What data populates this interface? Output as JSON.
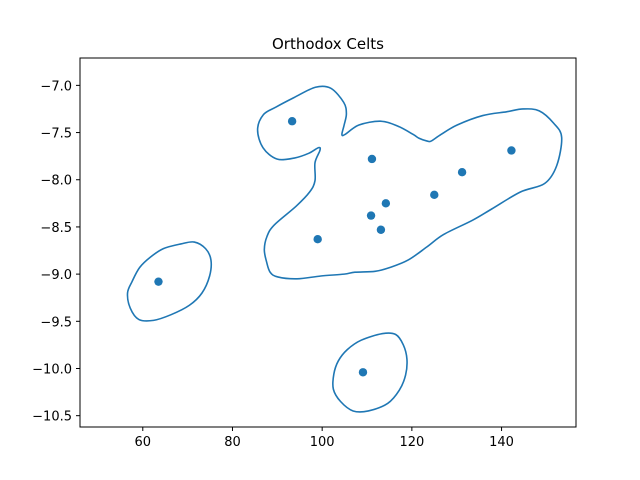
{
  "chart_data": {
    "type": "scatter",
    "title": "Orthodox Celts",
    "xlabel": "",
    "ylabel": "",
    "xlim": [
      46.0,
      156.6
    ],
    "ylim": [
      -10.62,
      -6.71
    ],
    "x_ticks": [
      60,
      80,
      100,
      120,
      140
    ],
    "x_tick_labels": [
      "60",
      "80",
      "100",
      "120",
      "140"
    ],
    "y_ticks": [
      -7.0,
      -7.5,
      -8.0,
      -8.5,
      -9.0,
      -9.5,
      -10.0,
      -10.5
    ],
    "y_tick_labels": [
      "−7.0",
      "−7.5",
      "−8.0",
      "−8.5",
      "−9.0",
      "−9.5",
      "−10.0",
      "−10.5"
    ],
    "grid": false,
    "colors": {
      "series": "#1f77b4"
    },
    "points": [
      {
        "x": 93.3,
        "y": -7.38
      },
      {
        "x": 111.1,
        "y": -7.78
      },
      {
        "x": 131.2,
        "y": -7.92
      },
      {
        "x": 142.2,
        "y": -7.69
      },
      {
        "x": 125.0,
        "y": -8.16
      },
      {
        "x": 114.2,
        "y": -8.25
      },
      {
        "x": 110.9,
        "y": -8.38
      },
      {
        "x": 113.1,
        "y": -8.53
      },
      {
        "x": 99.0,
        "y": -8.63
      },
      {
        "x": 63.5,
        "y": -9.08
      },
      {
        "x": 109.1,
        "y": -10.04
      }
    ],
    "contours": [
      [
        [
          93.7,
          -7.13
        ],
        [
          98.5,
          -7.02
        ],
        [
          101.9,
          -7.03
        ],
        [
          104.8,
          -7.18
        ],
        [
          105.4,
          -7.3
        ],
        [
          104.9,
          -7.42
        ],
        [
          104.4,
          -7.52
        ],
        [
          105.1,
          -7.52
        ],
        [
          108.2,
          -7.42
        ],
        [
          113.0,
          -7.38
        ],
        [
          116.8,
          -7.43
        ],
        [
          120.3,
          -7.52
        ],
        [
          121.6,
          -7.56
        ],
        [
          123.4,
          -7.59
        ],
        [
          124.3,
          -7.59
        ],
        [
          126.5,
          -7.52
        ],
        [
          130.1,
          -7.42
        ],
        [
          135.8,
          -7.32
        ],
        [
          141.1,
          -7.28
        ],
        [
          144.8,
          -7.25
        ],
        [
          148.4,
          -7.27
        ],
        [
          151.6,
          -7.4
        ],
        [
          153.4,
          -7.55
        ],
        [
          152.3,
          -7.85
        ],
        [
          149.6,
          -8.04
        ],
        [
          144.2,
          -8.13
        ],
        [
          137.8,
          -8.31
        ],
        [
          133.5,
          -8.43
        ],
        [
          127.1,
          -8.58
        ],
        [
          123.4,
          -8.71
        ],
        [
          119.2,
          -8.85
        ],
        [
          115.1,
          -8.93
        ],
        [
          111.8,
          -8.97
        ],
        [
          107.3,
          -8.98
        ],
        [
          104.9,
          -9.0
        ],
        [
          99.7,
          -9.02
        ],
        [
          94.4,
          -9.05
        ],
        [
          90.1,
          -9.03
        ],
        [
          88.4,
          -8.98
        ],
        [
          87.6,
          -8.87
        ],
        [
          87.1,
          -8.74
        ],
        [
          87.7,
          -8.6
        ],
        [
          89.3,
          -8.48
        ],
        [
          94.2,
          -8.28
        ],
        [
          97.2,
          -8.13
        ],
        [
          98.4,
          -8.01
        ],
        [
          98.4,
          -7.82
        ],
        [
          99.5,
          -7.69
        ],
        [
          99.2,
          -7.66
        ],
        [
          97.0,
          -7.72
        ],
        [
          93.8,
          -7.77
        ],
        [
          89.9,
          -7.78
        ],
        [
          86.8,
          -7.66
        ],
        [
          85.6,
          -7.47
        ],
        [
          86.9,
          -7.31
        ],
        [
          89.7,
          -7.23
        ],
        [
          93.7,
          -7.13
        ]
      ],
      [
        [
          68.5,
          -8.68
        ],
        [
          71.5,
          -8.66
        ],
        [
          74.0,
          -8.73
        ],
        [
          75.2,
          -8.85
        ],
        [
          74.9,
          -9.02
        ],
        [
          73.2,
          -9.2
        ],
        [
          70.4,
          -9.33
        ],
        [
          66.3,
          -9.43
        ],
        [
          62.4,
          -9.49
        ],
        [
          59.1,
          -9.48
        ],
        [
          57.2,
          -9.36
        ],
        [
          56.6,
          -9.2
        ],
        [
          57.6,
          -9.08
        ],
        [
          59.3,
          -8.93
        ],
        [
          61.7,
          -8.82
        ],
        [
          64.6,
          -8.73
        ],
        [
          68.5,
          -8.68
        ]
      ],
      [
        [
          113.5,
          -9.63
        ],
        [
          116.4,
          -9.64
        ],
        [
          118.1,
          -9.75
        ],
        [
          118.9,
          -9.9
        ],
        [
          118.6,
          -10.07
        ],
        [
          117.2,
          -10.23
        ],
        [
          114.6,
          -10.37
        ],
        [
          110.3,
          -10.45
        ],
        [
          106.9,
          -10.45
        ],
        [
          104.1,
          -10.35
        ],
        [
          102.5,
          -10.22
        ],
        [
          102.6,
          -10.06
        ],
        [
          103.6,
          -9.92
        ],
        [
          105.6,
          -9.8
        ],
        [
          108.7,
          -9.7
        ],
        [
          113.5,
          -9.63
        ]
      ]
    ]
  }
}
